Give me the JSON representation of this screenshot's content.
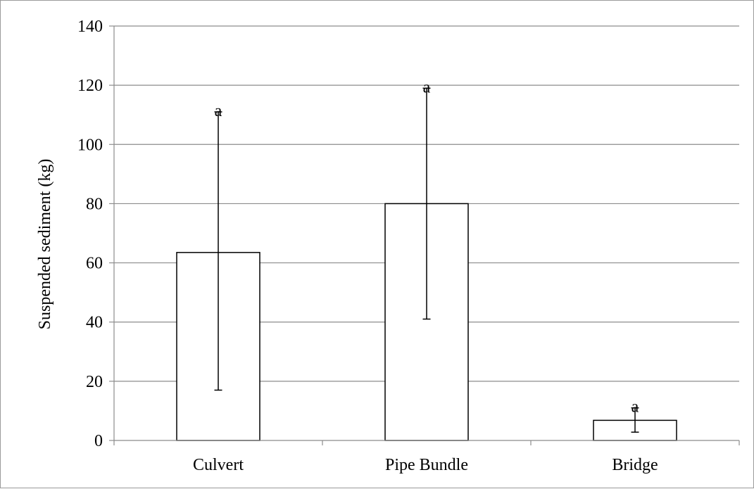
{
  "chart_data": {
    "type": "bar",
    "title": "",
    "xlabel": "",
    "ylabel": "Suspended sediment (kg)",
    "ylim": [
      0,
      140
    ],
    "yticks": [
      0,
      20,
      40,
      60,
      80,
      100,
      120,
      140
    ],
    "grid": true,
    "legend": "none",
    "categories": [
      "Culvert",
      "Pipe Bundle",
      "Bridge"
    ],
    "values": [
      63.5,
      80,
      6.8
    ],
    "error_low": [
      17,
      41,
      2.8
    ],
    "error_high": [
      111,
      119,
      11
    ],
    "annotations": [
      "a",
      "a",
      "a"
    ],
    "colors": {
      "bar_fill": "#ffffff",
      "bar_stroke": "#000000",
      "grid": "#8c8c8c",
      "axis": "#8c8c8c",
      "frame": "#9a9a9a"
    }
  }
}
